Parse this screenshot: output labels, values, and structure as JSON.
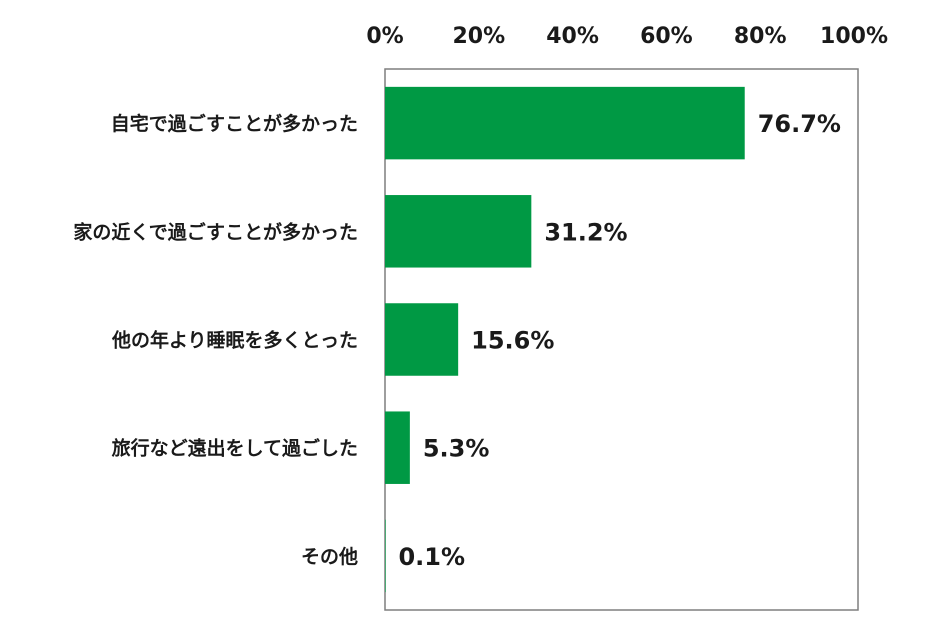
{
  "chart_data": {
    "type": "bar",
    "orientation": "horizontal",
    "categories": [
      "自宅で過ごすことが多かった",
      "家の近くで過ごすことが多かった",
      "他の年より睡眠を多くとった",
      "旅行など遠出をして過ごした",
      "その他"
    ],
    "values": [
      76.7,
      31.2,
      15.6,
      5.3,
      0.1
    ],
    "value_labels": [
      "76.7%",
      "31.2%",
      "15.6%",
      "5.3%",
      "0.1%"
    ],
    "x_ticks": [
      "0%",
      "20%",
      "40%",
      "60%",
      "80%",
      "100%"
    ],
    "x_tick_values": [
      0,
      20,
      40,
      60,
      80,
      100
    ],
    "xlim": [
      0,
      100
    ],
    "axis_position": "top",
    "grid": false,
    "bar_color": "#009944",
    "frame_color": "#7f7f7f"
  }
}
